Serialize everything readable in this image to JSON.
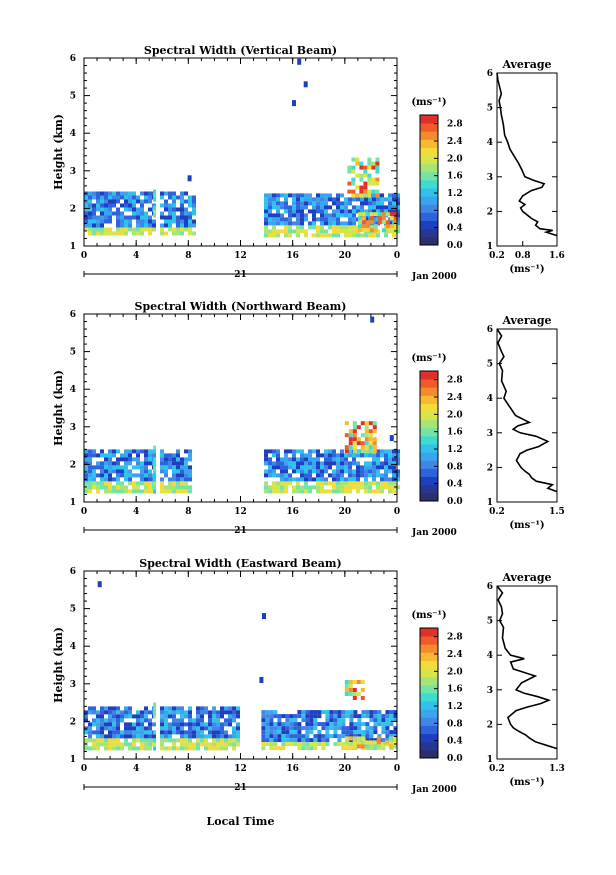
{
  "figure": {
    "xlabel": "Local Time",
    "date_label": "21",
    "month_label": "Jan 2000",
    "ylabel": "Height (km)",
    "colorbar_unit": "(ms⁻¹)",
    "avg_title": "Average",
    "avg_xlabel": "(ms⁻¹)"
  },
  "chart_data": [
    {
      "type": "heatmap",
      "title": "Spectral Width (Vertical Beam)",
      "xlabel": "Local Time",
      "ylabel": "Height (km)",
      "x_ticks": [
        "0",
        "4",
        "8",
        "12",
        "16",
        "20",
        "0"
      ],
      "y_ticks": [
        "1",
        "2",
        "3",
        "4",
        "5",
        "6"
      ],
      "xlim": [
        0,
        24
      ],
      "ylim": [
        1,
        6
      ],
      "colorbar": {
        "ticks": [
          "0.0",
          "0.4",
          "0.8",
          "1.2",
          "1.6",
          "2.0",
          "2.4",
          "2.8"
        ],
        "range": [
          0,
          3.0
        ],
        "colors": [
          "#2b2f6e",
          "#283593",
          "#1e3fbf",
          "#2f62dd",
          "#3e86e8",
          "#3aa4ee",
          "#30c2ea",
          "#3fdad0",
          "#74e3a6",
          "#a8e475",
          "#d6e54a",
          "#f3dc3a",
          "#f7b932",
          "#f48a2e",
          "#ee5a2a",
          "#e0302c"
        ]
      },
      "regions": [
        {
          "x": [
            0.0,
            8.4
          ],
          "y": [
            1.3,
            2.45
          ],
          "level": "low"
        },
        {
          "x": [
            13.8,
            24.0
          ],
          "y": [
            1.3,
            2.4
          ],
          "level": "low"
        },
        {
          "x": [
            20.2,
            22.5
          ],
          "y": [
            2.3,
            3.35
          ],
          "level": "high"
        },
        {
          "x": [
            21.0,
            24.0
          ],
          "y": [
            1.4,
            1.9
          ],
          "level": "high"
        }
      ],
      "data_gaps": [
        [
          5.3,
          5.7
        ],
        [
          8.4,
          13.8
        ]
      ],
      "isolated_echoes": [
        {
          "x": 16.5,
          "y": 5.9
        },
        {
          "x": 17.0,
          "y": 5.3
        },
        {
          "x": 16.1,
          "y": 4.8
        },
        {
          "x": 8.1,
          "y": 2.8
        }
      ],
      "average_profile": {
        "xlim": [
          0.2,
          1.6
        ],
        "x_ticks": [
          "0.2",
          "0.8",
          "1.6"
        ],
        "heights": [
          1.3,
          1.4,
          1.45,
          1.5,
          1.6,
          1.7,
          1.8,
          2.0,
          2.1,
          2.2,
          2.3,
          2.45,
          2.6,
          2.7,
          2.8,
          2.9,
          3.0,
          3.2,
          3.4,
          3.6,
          3.8,
          4.0,
          4.2,
          4.5,
          4.8,
          5.0,
          5.2,
          5.4,
          5.6,
          5.8,
          6.0
        ],
        "values": [
          1.6,
          1.35,
          1.5,
          1.2,
          1.1,
          1.15,
          1.0,
          0.8,
          0.75,
          0.85,
          0.72,
          0.8,
          1.0,
          1.25,
          1.3,
          1.05,
          0.85,
          0.78,
          0.7,
          0.6,
          0.5,
          0.45,
          0.38,
          0.35,
          0.3,
          0.28,
          0.25,
          0.3,
          0.26,
          0.22,
          0.2
        ]
      }
    },
    {
      "type": "heatmap",
      "title": "Spectral Width (Northward Beam)",
      "xlabel": "Local Time",
      "ylabel": "Height (km)",
      "x_ticks": [
        "0",
        "4",
        "8",
        "12",
        "16",
        "20",
        "0"
      ],
      "y_ticks": [
        "1",
        "2",
        "3",
        "4",
        "5",
        "6"
      ],
      "xlim": [
        0,
        24
      ],
      "ylim": [
        1,
        6
      ],
      "colorbar": {
        "ticks": [
          "0.0",
          "0.4",
          "0.8",
          "1.2",
          "1.6",
          "2.0",
          "2.4",
          "2.8"
        ],
        "range": [
          0,
          3.0
        ],
        "colors": [
          "#2b2f6e",
          "#283593",
          "#1e3fbf",
          "#2f62dd",
          "#3e86e8",
          "#3aa4ee",
          "#30c2ea",
          "#3fdad0",
          "#74e3a6",
          "#a8e475",
          "#d6e54a",
          "#f3dc3a",
          "#f7b932",
          "#f48a2e",
          "#ee5a2a",
          "#e0302c"
        ]
      },
      "regions": [
        {
          "x": [
            0.0,
            8.3
          ],
          "y": [
            1.3,
            2.4
          ],
          "level": "low"
        },
        {
          "x": [
            13.8,
            24.0
          ],
          "y": [
            1.3,
            2.4
          ],
          "level": "low"
        },
        {
          "x": [
            20.0,
            22.2
          ],
          "y": [
            2.3,
            3.15
          ],
          "level": "high"
        }
      ],
      "data_gaps": [
        [
          5.3,
          5.7
        ],
        [
          8.3,
          13.8
        ]
      ],
      "isolated_echoes": [
        {
          "x": 22.1,
          "y": 5.85
        },
        {
          "x": 23.6,
          "y": 2.7
        }
      ],
      "average_profile": {
        "xlim": [
          0.2,
          1.5
        ],
        "x_ticks": [
          "0.2",
          "1.5"
        ],
        "heights": [
          1.3,
          1.4,
          1.5,
          1.6,
          1.7,
          1.8,
          1.9,
          2.0,
          2.2,
          2.4,
          2.5,
          2.6,
          2.75,
          2.9,
          3.0,
          3.1,
          3.2,
          3.3,
          3.5,
          3.8,
          4.0,
          4.2,
          4.5,
          4.8,
          5.0,
          5.2,
          5.4,
          5.6,
          5.8,
          6.0
        ],
        "values": [
          1.5,
          1.3,
          1.4,
          1.05,
          0.95,
          0.9,
          0.8,
          0.72,
          0.62,
          0.7,
          0.85,
          1.1,
          1.3,
          1.05,
          0.7,
          0.55,
          0.65,
          0.9,
          0.6,
          0.45,
          0.35,
          0.4,
          0.3,
          0.32,
          0.25,
          0.35,
          0.28,
          0.22,
          0.3,
          0.2
        ]
      }
    },
    {
      "type": "heatmap",
      "title": "Spectral Width (Eastward Beam)",
      "xlabel": "Local Time",
      "ylabel": "Height (km)",
      "x_ticks": [
        "0",
        "4",
        "8",
        "12",
        "16",
        "20",
        "0"
      ],
      "y_ticks": [
        "1",
        "2",
        "3",
        "4",
        "5",
        "6"
      ],
      "xlim": [
        0,
        24
      ],
      "ylim": [
        1,
        6
      ],
      "colorbar": {
        "ticks": [
          "0.0",
          "0.4",
          "0.8",
          "1.2",
          "1.6",
          "2.0",
          "2.4",
          "2.8"
        ],
        "range": [
          0,
          3.0
        ],
        "colors": [
          "#2b2f6e",
          "#283593",
          "#1e3fbf",
          "#2f62dd",
          "#3e86e8",
          "#3aa4ee",
          "#30c2ea",
          "#3fdad0",
          "#74e3a6",
          "#a8e475",
          "#d6e54a",
          "#f3dc3a",
          "#f7b932",
          "#f48a2e",
          "#ee5a2a",
          "#e0302c"
        ]
      },
      "regions": [
        {
          "x": [
            0.0,
            11.8
          ],
          "y": [
            1.3,
            2.4
          ],
          "level": "low"
        },
        {
          "x": [
            13.6,
            24.0
          ],
          "y": [
            1.3,
            2.3
          ],
          "level": "low"
        },
        {
          "x": [
            20.0,
            21.5
          ],
          "y": [
            2.6,
            3.1
          ],
          "level": "high"
        },
        {
          "x": [
            20.0,
            24.0
          ],
          "y": [
            1.3,
            1.6
          ],
          "level": "mid"
        }
      ],
      "data_gaps": [
        [
          5.3,
          5.8
        ],
        [
          11.8,
          13.6
        ]
      ],
      "isolated_echoes": [
        {
          "x": 1.2,
          "y": 5.65
        },
        {
          "x": 13.8,
          "y": 4.8
        },
        {
          "x": 13.6,
          "y": 3.1
        }
      ],
      "average_profile": {
        "xlim": [
          0.2,
          1.3
        ],
        "x_ticks": [
          "0.2",
          "1.3"
        ],
        "heights": [
          1.3,
          1.4,
          1.5,
          1.6,
          1.7,
          1.8,
          1.9,
          2.0,
          2.2,
          2.4,
          2.5,
          2.6,
          2.7,
          2.8,
          2.9,
          3.0,
          3.2,
          3.4,
          3.6,
          3.8,
          3.9,
          4.0,
          4.2,
          4.5,
          4.8,
          5.0,
          5.2,
          5.4,
          5.6,
          5.8,
          6.0
        ],
        "values": [
          1.3,
          1.1,
          0.9,
          0.8,
          0.72,
          0.6,
          0.5,
          0.45,
          0.4,
          0.55,
          0.75,
          1.0,
          1.15,
          0.95,
          0.7,
          0.55,
          0.65,
          0.9,
          0.5,
          0.45,
          0.7,
          0.45,
          0.35,
          0.3,
          0.32,
          0.25,
          0.3,
          0.28,
          0.22,
          0.3,
          0.2
        ]
      }
    }
  ]
}
